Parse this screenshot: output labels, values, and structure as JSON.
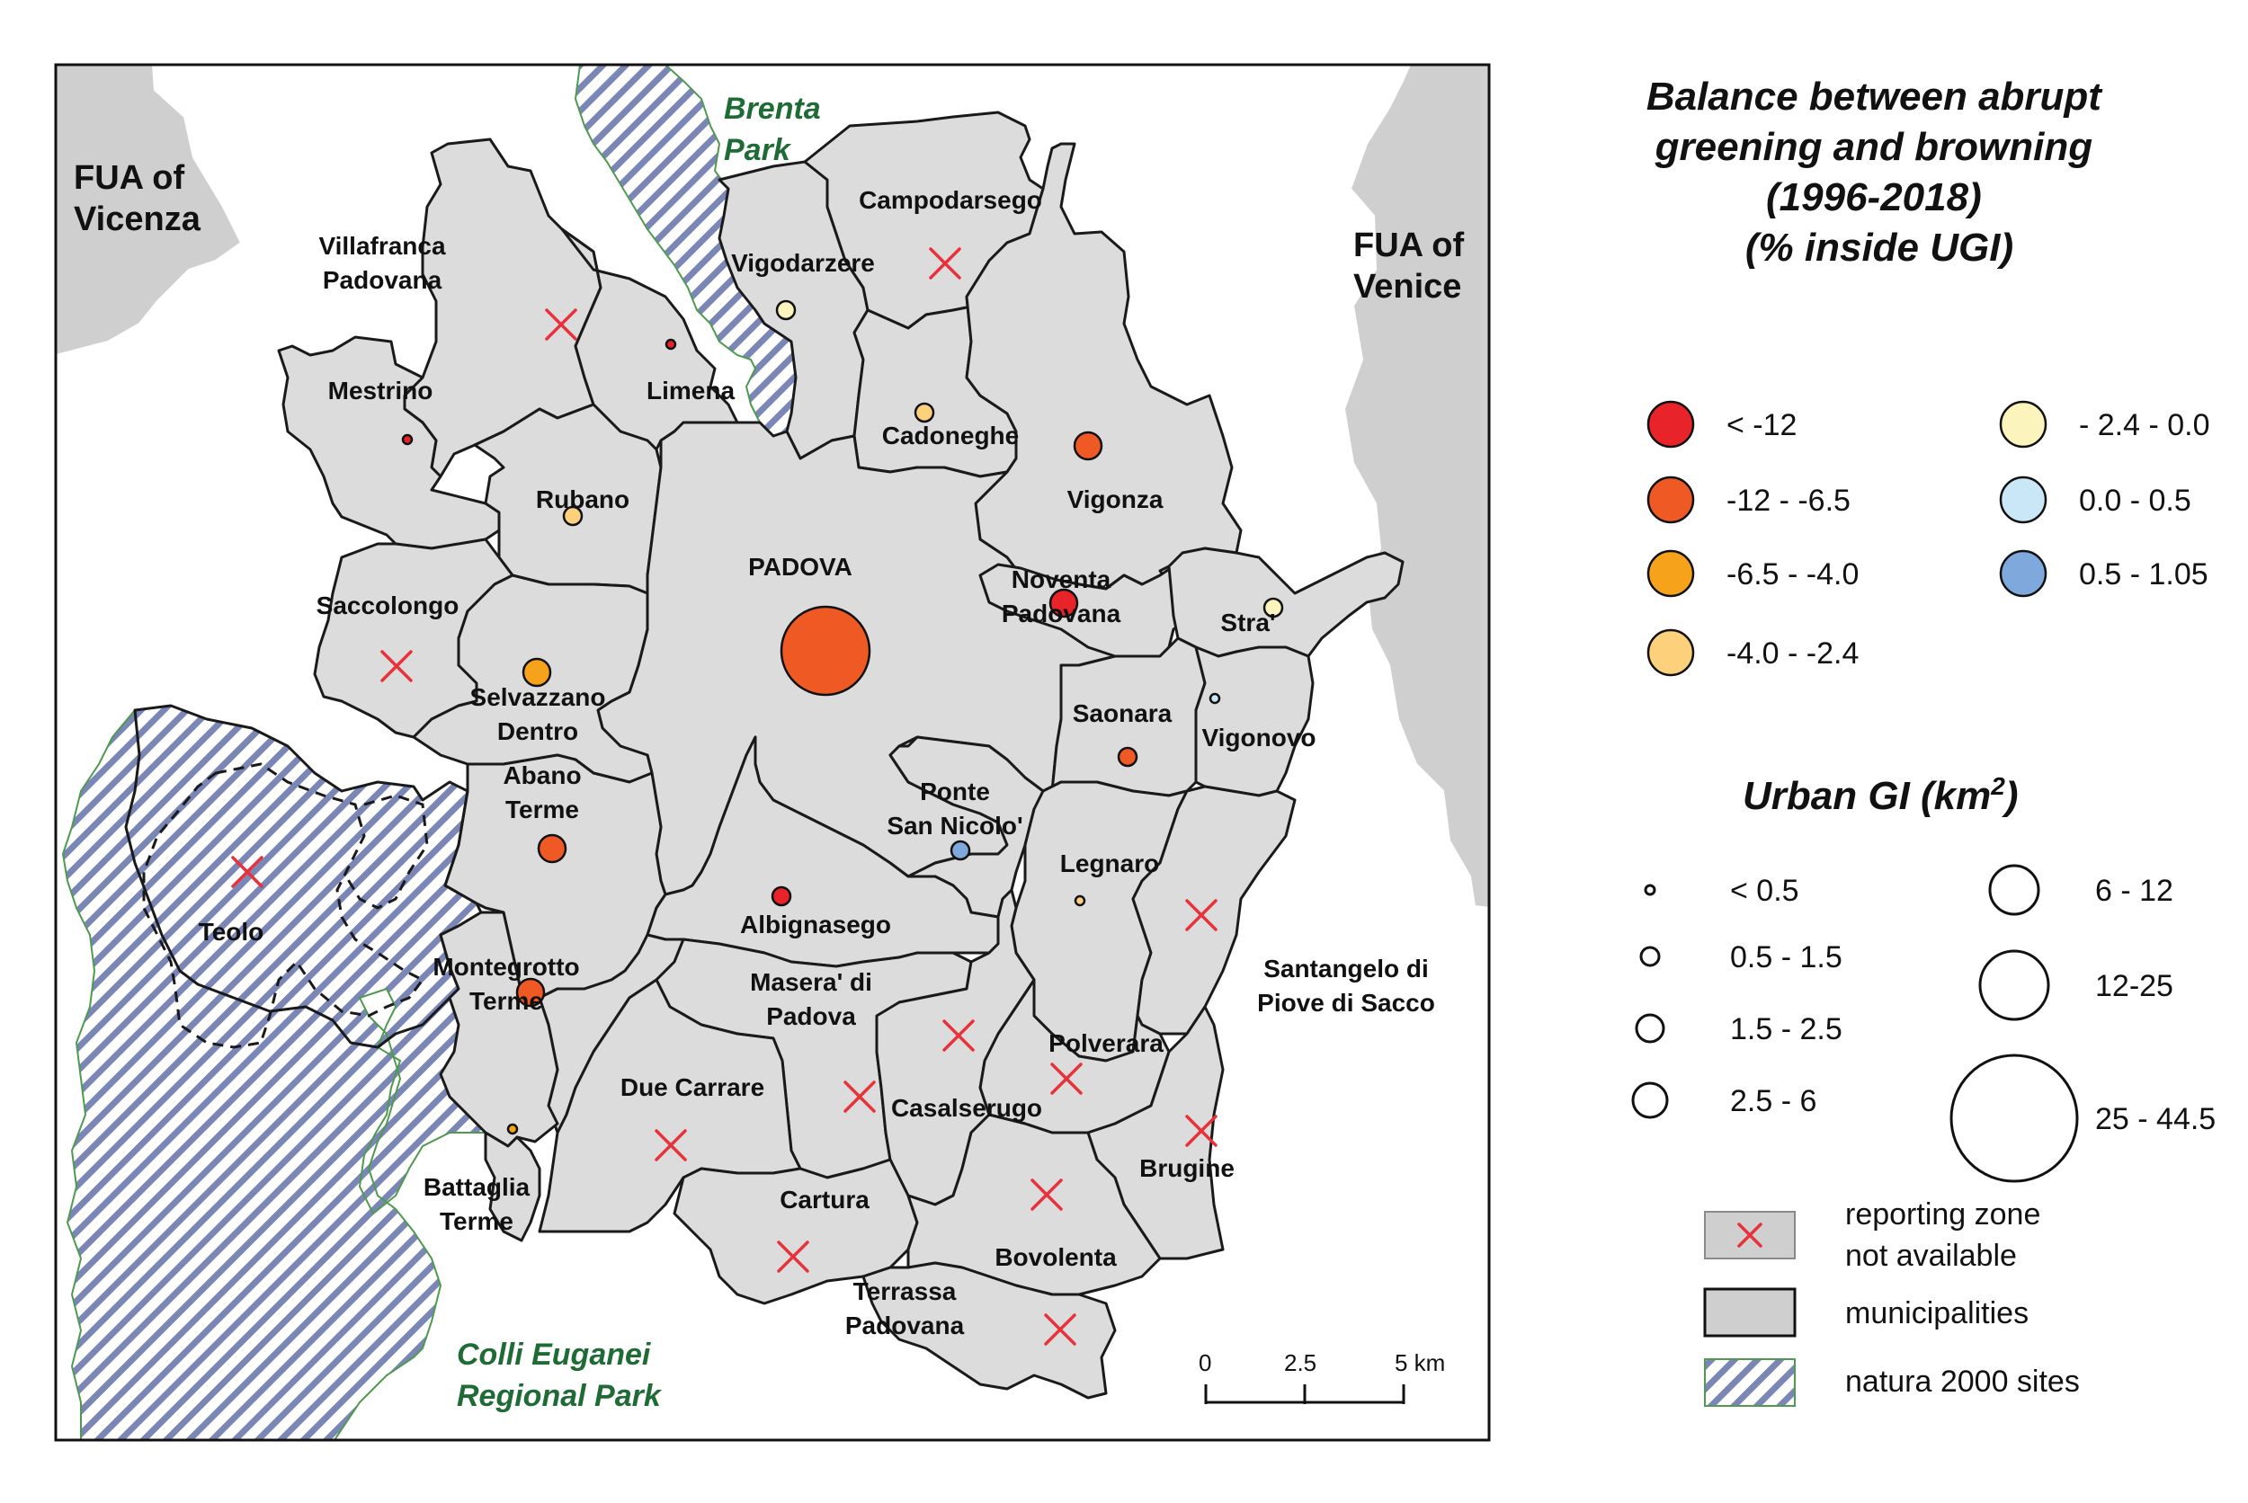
{
  "map": {
    "fua_labels": [
      {
        "id": "vicenza",
        "lines": [
          "FUA of",
          "Vicenza"
        ]
      },
      {
        "id": "venice",
        "lines": [
          "FUA of",
          "Venice"
        ]
      }
    ],
    "park_labels": [
      {
        "id": "brenta",
        "lines": [
          "Brenta",
          "Park"
        ]
      },
      {
        "id": "colli",
        "lines": [
          "Colli Euganei",
          "Regional Park"
        ]
      }
    ],
    "municipalities": [
      {
        "id": "villafranca",
        "lines": [
          "Villafranca",
          "Padovana"
        ]
      },
      {
        "id": "mestrino",
        "lines": [
          "Mestrino"
        ]
      },
      {
        "id": "limena",
        "lines": [
          "Limena"
        ]
      },
      {
        "id": "vigodarzere",
        "lines": [
          "Vigodarzere"
        ]
      },
      {
        "id": "campodarsego",
        "lines": [
          "Campodarsego"
        ]
      },
      {
        "id": "cadoneghe",
        "lines": [
          "Cadoneghe"
        ]
      },
      {
        "id": "rubano",
        "lines": [
          "Rubano"
        ]
      },
      {
        "id": "vigonza",
        "lines": [
          "Vigonza"
        ]
      },
      {
        "id": "padova",
        "lines": [
          "PADOVA"
        ]
      },
      {
        "id": "noventa",
        "lines": [
          "Noventa",
          "Padovana"
        ]
      },
      {
        "id": "stra",
        "lines": [
          "Stra'"
        ]
      },
      {
        "id": "saccolongo",
        "lines": [
          "Saccolongo"
        ]
      },
      {
        "id": "selvazzano",
        "lines": [
          "Selvazzano",
          "Dentro"
        ]
      },
      {
        "id": "saonara",
        "lines": [
          "Saonara"
        ]
      },
      {
        "id": "vigonovo",
        "lines": [
          "Vigonovo"
        ]
      },
      {
        "id": "abano",
        "lines": [
          "Abano",
          "Terme"
        ]
      },
      {
        "id": "ponte",
        "lines": [
          "Ponte",
          "San Nicolo'"
        ]
      },
      {
        "id": "legnaro",
        "lines": [
          "Legnaro"
        ]
      },
      {
        "id": "teolo",
        "lines": [
          "Teolo"
        ]
      },
      {
        "id": "albignasego",
        "lines": [
          "Albignasego"
        ]
      },
      {
        "id": "santangelo",
        "lines": [
          "Santangelo di",
          "Piove di Sacco"
        ]
      },
      {
        "id": "montegrotto",
        "lines": [
          "Montegrotto",
          "Terme"
        ]
      },
      {
        "id": "masera",
        "lines": [
          "Masera' di",
          "Padova"
        ]
      },
      {
        "id": "polverara",
        "lines": [
          "Polverara"
        ]
      },
      {
        "id": "duecarrare",
        "lines": [
          "Due Carrare"
        ]
      },
      {
        "id": "casalserugo",
        "lines": [
          "Casalserugo"
        ]
      },
      {
        "id": "brugine",
        "lines": [
          "Brugine"
        ]
      },
      {
        "id": "battaglia",
        "lines": [
          "Battaglia",
          "Terme"
        ]
      },
      {
        "id": "cartura",
        "lines": [
          "Cartura"
        ]
      },
      {
        "id": "bovolenta",
        "lines": [
          "Bovolenta"
        ]
      },
      {
        "id": "terrassa",
        "lines": [
          "Terrassa",
          "Padovana"
        ]
      }
    ],
    "balance_points": [
      {
        "municipality": "Padova",
        "balance_class": "-12 - -6.5",
        "gi_class": "25 - 44.5"
      },
      {
        "municipality": "Noventa Padovana",
        "balance_class": "< -12",
        "gi_class": "1.5 - 2.5"
      },
      {
        "municipality": "Vigonza",
        "balance_class": "-12 - -6.5",
        "gi_class": "1.5 - 2.5"
      },
      {
        "municipality": "Cadoneghe",
        "balance_class": "-4.0 - -2.4",
        "gi_class": "0.5 - 1.5"
      },
      {
        "municipality": "Vigodarzere",
        "balance_class": "- 2.4 - 0.0",
        "gi_class": "0.5 - 1.5"
      },
      {
        "municipality": "Limena",
        "balance_class": "< -12",
        "gi_class": "< 0.5"
      },
      {
        "municipality": "Mestrino",
        "balance_class": "< -12",
        "gi_class": "< 0.5"
      },
      {
        "municipality": "Rubano",
        "balance_class": "-4.0 - -2.4",
        "gi_class": "0.5 - 1.5"
      },
      {
        "municipality": "Selvazzano Dentro",
        "balance_class": "-6.5 - -4.0",
        "gi_class": "1.5 - 2.5"
      },
      {
        "municipality": "Stra'",
        "balance_class": "- 2.4 - 0.0",
        "gi_class": "0.5 - 1.5"
      },
      {
        "municipality": "Vigonovo",
        "balance_class": "0.0 - 0.5",
        "gi_class": "< 0.5"
      },
      {
        "municipality": "Saonara",
        "balance_class": "-12 - -6.5",
        "gi_class": "0.5 - 1.5"
      },
      {
        "municipality": "Abano Terme",
        "balance_class": "-12 - -6.5",
        "gi_class": "1.5 - 2.5"
      },
      {
        "municipality": "Ponte San Nicolo'",
        "balance_class": "0.5 - 1.05",
        "gi_class": "0.5 - 1.5"
      },
      {
        "municipality": "Legnaro",
        "balance_class": "-4.0 - -2.4",
        "gi_class": "< 0.5"
      },
      {
        "municipality": "Albignasego",
        "balance_class": "< -12",
        "gi_class": "0.5 - 1.5"
      },
      {
        "municipality": "Montegrotto Terme",
        "balance_class": "-12 - -6.5",
        "gi_class": "1.5 - 2.5"
      },
      {
        "municipality": "Battaglia Terme",
        "balance_class": "-6.5 - -4.0",
        "gi_class": "< 0.5"
      }
    ],
    "not_available": [
      "Villafranca Padovana",
      "Campodarsego",
      "Saccolongo",
      "Teolo",
      "Santangelo di Piove di Sacco",
      "Masera' di Padova",
      "Polverara",
      "Due Carrare",
      "Casalserugo",
      "Brugine",
      "Cartura",
      "Bovolenta",
      "Terrassa Padovana"
    ],
    "scale_bar": {
      "labels": [
        "0",
        "2.5",
        "5 km"
      ]
    }
  },
  "legend": {
    "balance_title": [
      "Balance between abrupt",
      "greening and browning",
      "(1996-2018)",
      "(% inside UGI)"
    ],
    "balance_classes": [
      {
        "label": "< -12",
        "color": "#e8232a"
      },
      {
        "label": "-12 - -6.5",
        "color": "#ef5a24"
      },
      {
        "label": "-6.5 - -4.0",
        "color": "#f7a21b"
      },
      {
        "label": "-4.0 - -2.4",
        "color": "#fdd07c"
      },
      {
        "label": "- 2.4 - 0.0",
        "color": "#fbf4bd"
      },
      {
        "label": "0.0 - 0.5",
        "color": "#c9e7f6"
      },
      {
        "label": "0.5 - 1.05",
        "color": "#7fa9dc"
      }
    ],
    "gi_title": "Urban GI (km",
    "gi_title_sup": "2",
    "gi_title_end": ")",
    "gi_classes": [
      "< 0.5",
      "0.5 - 1.5",
      "1.5 - 2.5",
      "2.5 - 6",
      "6 - 12",
      "12-25",
      "25 - 44.5"
    ],
    "symbols": [
      {
        "id": "na",
        "lines": [
          "reporting zone",
          "not available"
        ]
      },
      {
        "id": "muni",
        "lines": [
          "municipalities"
        ]
      },
      {
        "id": "natura",
        "lines": [
          "natura 2000 sites"
        ]
      }
    ],
    "colors": {
      "municipality_fill": "#dcdcdc",
      "fua_fill": "#cfcfcf",
      "natura_stripe": "#7a86b6",
      "na_marker": "#e8313a",
      "park_text": "#1f6b35"
    }
  }
}
